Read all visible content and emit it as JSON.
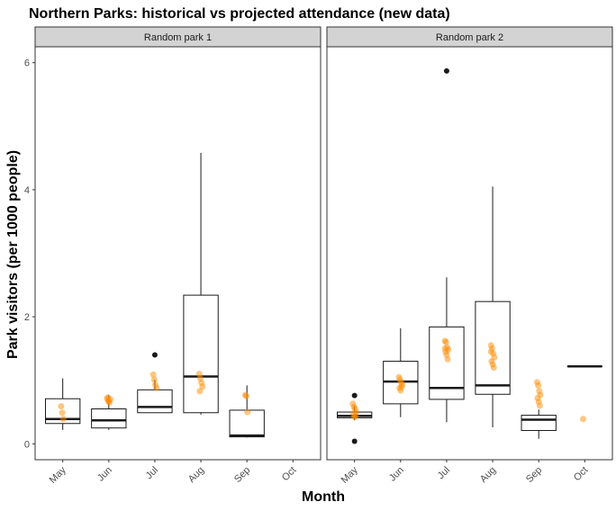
{
  "chart_data": {
    "type": "box",
    "title": "Northern Parks: historical vs projected attendance (new data)",
    "xlabel": "Month",
    "ylabel": "Park visitors (per 1000 people)",
    "ylim": [
      -0.25,
      6.25
    ],
    "yticks": [
      0,
      2,
      4,
      6
    ],
    "categories": [
      "May",
      "Jun",
      "Jul",
      "Aug",
      "Sep",
      "Oct"
    ],
    "grid": false,
    "colors": {
      "box": "#1a1a1a",
      "points": "#ff8c00",
      "strip": "#d3d3d3",
      "outlier": "#1a1a1a"
    },
    "panels": [
      {
        "name": "Random park 1",
        "boxes": [
          {
            "month": "May",
            "q1": 0.32,
            "median": 0.39,
            "q3": 0.71,
            "whisker_low": 0.22,
            "whisker_high": 1.03,
            "outliers": []
          },
          {
            "month": "Jun",
            "q1": 0.25,
            "median": 0.37,
            "q3": 0.55,
            "whisker_low": 0.22,
            "whisker_high": 0.77,
            "outliers": []
          },
          {
            "month": "Jul",
            "q1": 0.49,
            "median": 0.58,
            "q3": 0.85,
            "whisker_low": 0.49,
            "whisker_high": 1.01,
            "outliers": [
              1.4
            ]
          },
          {
            "month": "Aug",
            "q1": 0.49,
            "median": 1.06,
            "q3": 2.34,
            "whisker_low": 0.46,
            "whisker_high": 4.58,
            "outliers": []
          },
          {
            "month": "Sep",
            "q1": 0.11,
            "median": 0.13,
            "q3": 0.53,
            "whisker_low": 0.1,
            "whisker_high": 0.92,
            "outliers": []
          }
        ],
        "projected": [
          {
            "month": "May",
            "values": [
              0.59,
              0.49,
              0.39
            ]
          },
          {
            "month": "Jun",
            "values": [
              0.71,
              0.68,
              0.65,
              0.7,
              0.73,
              0.67
            ]
          },
          {
            "month": "Jul",
            "values": [
              1.09,
              1.01,
              0.93,
              0.88
            ]
          },
          {
            "month": "Aug",
            "values": [
              1.1,
              1.03,
              0.96,
              0.9,
              0.83
            ]
          },
          {
            "month": "Sep",
            "values": [
              0.77,
              0.75,
              0.5
            ]
          }
        ]
      },
      {
        "name": "Random park 2",
        "boxes": [
          {
            "month": "May",
            "q1": 0.41,
            "median": 0.44,
            "q3": 0.5,
            "whisker_low": 0.37,
            "whisker_high": 0.6,
            "outliers": [
              0.76,
              0.04
            ]
          },
          {
            "month": "Jun",
            "q1": 0.63,
            "median": 0.98,
            "q3": 1.3,
            "whisker_low": 0.42,
            "whisker_high": 1.82,
            "outliers": []
          },
          {
            "month": "Jul",
            "q1": 0.7,
            "median": 0.88,
            "q3": 1.84,
            "whisker_low": 0.34,
            "whisker_high": 2.62,
            "outliers": [
              5.87
            ]
          },
          {
            "month": "Aug",
            "q1": 0.78,
            "median": 0.92,
            "q3": 2.24,
            "whisker_low": 0.26,
            "whisker_high": 4.05,
            "outliers": []
          },
          {
            "month": "Sep",
            "q1": 0.21,
            "median": 0.38,
            "q3": 0.45,
            "whisker_low": 0.08,
            "whisker_high": 0.54,
            "outliers": []
          },
          {
            "month": "Oct",
            "q1": 1.22,
            "median": 1.22,
            "q3": 1.22,
            "whisker_low": 1.22,
            "whisker_high": 1.22,
            "outliers": []
          }
        ],
        "projected": [
          {
            "month": "May",
            "values": [
              0.63,
              0.58,
              0.55,
              0.5,
              0.47,
              0.42,
              0.44
            ]
          },
          {
            "month": "Jun",
            "values": [
              1.05,
              1.01,
              0.97,
              0.93,
              0.88,
              0.84,
              0.9
            ]
          },
          {
            "month": "Jul",
            "values": [
              1.62,
              1.6,
              1.52,
              1.48,
              1.45,
              1.4,
              1.33,
              1.5
            ]
          },
          {
            "month": "Aug",
            "values": [
              1.55,
              1.5,
              1.42,
              1.36,
              1.3,
              1.25,
              1.2,
              1.45
            ]
          },
          {
            "month": "Sep",
            "values": [
              0.97,
              0.92,
              0.83,
              0.77,
              0.72,
              0.66,
              0.6
            ]
          },
          {
            "month": "Oct",
            "values": [
              0.39
            ]
          }
        ]
      }
    ]
  }
}
